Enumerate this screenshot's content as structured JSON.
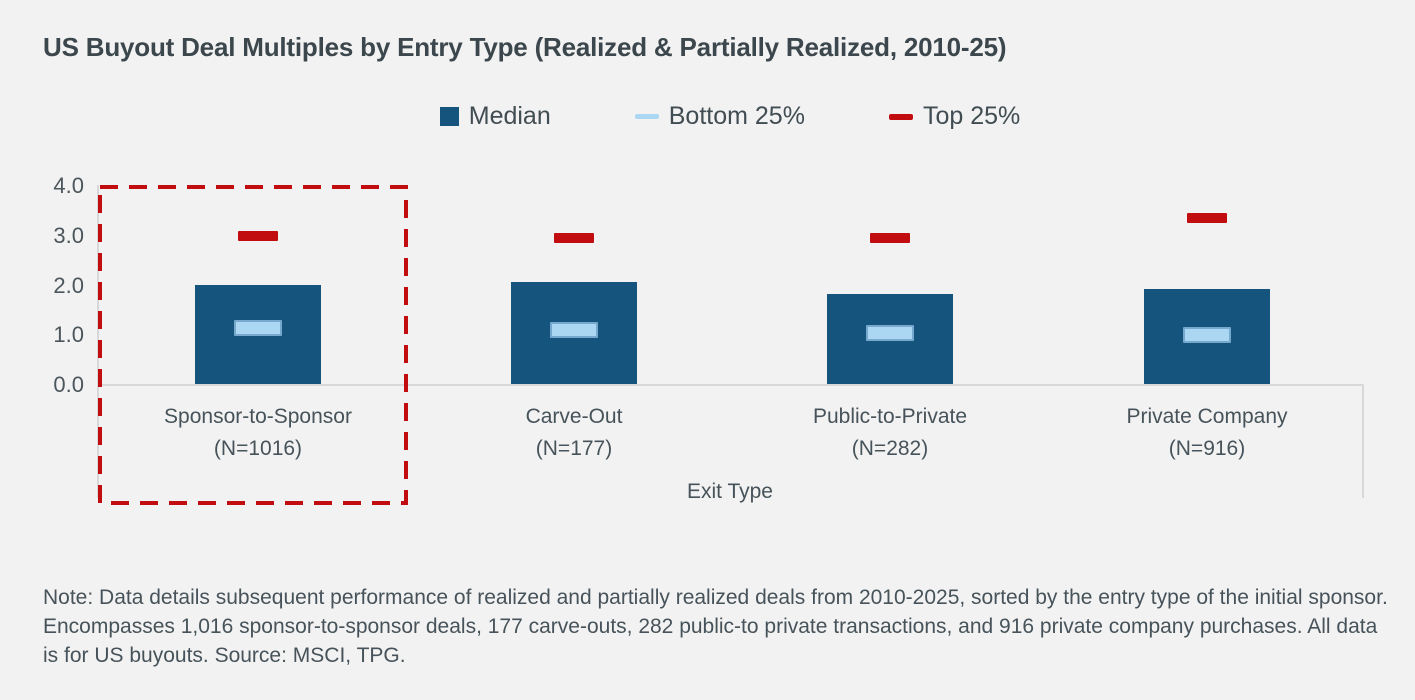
{
  "title": "US Buyout Deal Multiples by Entry Type (Realized & Partially Realized, 2010-25)",
  "legend": [
    {
      "label": "Median",
      "marker": "square",
      "color": "#15547d"
    },
    {
      "label": "Bottom 25%",
      "marker": "dash",
      "color": "#abd7f3"
    },
    {
      "label": "Top 25%",
      "marker": "dash",
      "color": "#c20d10"
    }
  ],
  "chart_data": {
    "type": "bar",
    "title": "US Buyout Deal Multiples by Entry Type (Realized & Partially Realized, 2010-25)",
    "xlabel": "Exit Type",
    "ylabel": "",
    "ylim": [
      0,
      4
    ],
    "yticks": [
      "4.0",
      "3.0",
      "2.0",
      "1.0",
      "0.0"
    ],
    "grid": false,
    "legend_position": "top-center",
    "categories": [
      "Sponsor-to-Sponsor",
      "Carve-Out",
      "Public-to-Private",
      "Private Company"
    ],
    "category_counts": [
      "(N=1016)",
      "(N=177)",
      "(N=282)",
      "(N=916)"
    ],
    "series": [
      {
        "name": "Median",
        "style": "bar",
        "color": "#15547d",
        "values": [
          2.0,
          2.05,
          1.8,
          1.9
        ]
      },
      {
        "name": "Bottom 25%",
        "style": "dash",
        "color": "#abd7f3",
        "values": [
          1.15,
          1.1,
          1.05,
          1.0
        ]
      },
      {
        "name": "Top 25%",
        "style": "dash",
        "color": "#c20d10",
        "values": [
          3.0,
          2.95,
          2.95,
          3.35
        ]
      }
    ],
    "annotations": [
      {
        "type": "highlight-rectangle",
        "style": "red-dashed",
        "color": "#c20d10",
        "target": "Sponsor-to-Sponsor"
      }
    ]
  },
  "note": "Note: Data details subsequent performance of realized and partially realized deals from 2010-2025, sorted by the entry type of the initial sponsor. Encompasses 1,016 sponsor-to-sponsor deals, 177 carve-outs, 282 public-to private transactions, and 916 private company purchases. All data is for US buyouts. Source: MSCI, TPG.",
  "colors": {
    "background": "#f2f2f2",
    "bar_blue": "#15547d",
    "light_blue_fill": "#abd7f3",
    "light_blue_border": "#77a9ce",
    "red": "#c20d10",
    "title_text": "#3b474c",
    "body_text": "#47535a",
    "axis_line": "#d8d8d8"
  }
}
